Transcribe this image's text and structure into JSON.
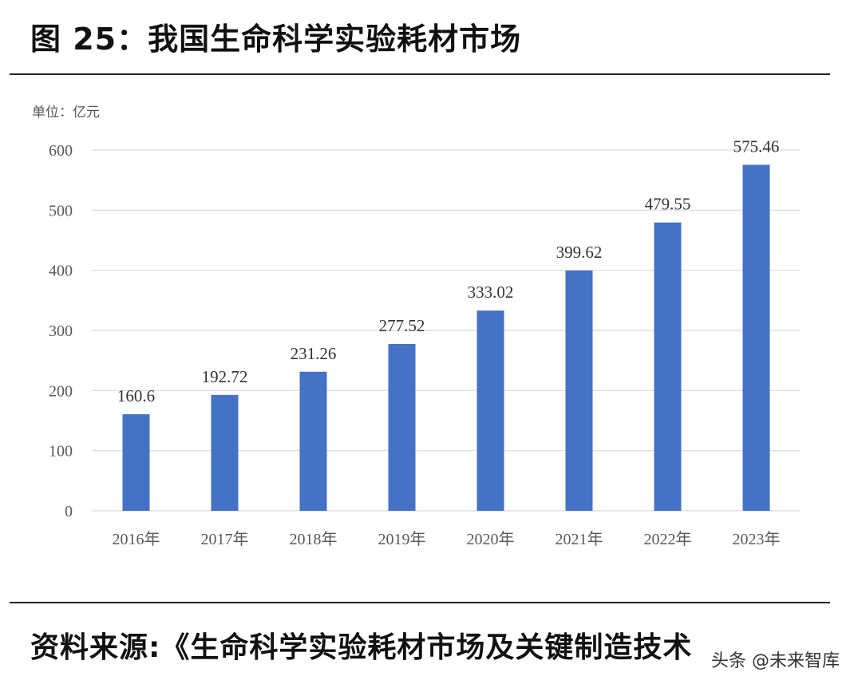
{
  "figure": {
    "title": "图 25：我国生命科学实验耗材市场",
    "unit_label": "单位：亿元",
    "source_text": "资料来源:《生命科学实验耗材市场及关键制造技术",
    "watermark": "头条 @未来智库"
  },
  "colors": {
    "bar": "#4472c4",
    "grid": "#d9d9d9",
    "axis_text": "#595959"
  },
  "chart_data": {
    "type": "bar",
    "title": "我国生命科学实验耗材市场",
    "xlabel": "",
    "ylabel": "单位：亿元",
    "categories": [
      "2016年",
      "2017年",
      "2018年",
      "2019年",
      "2020年",
      "2021年",
      "2022年",
      "2023年"
    ],
    "values": [
      160.6,
      192.72,
      231.26,
      277.52,
      333.02,
      399.62,
      479.55,
      575.46
    ],
    "data_labels": [
      "160.6",
      "192.72",
      "231.26",
      "277.52",
      "333.02",
      "399.62",
      "479.55",
      "575.46"
    ],
    "ylim": [
      0,
      600
    ],
    "yticks": [
      0,
      100,
      200,
      300,
      400,
      500,
      600
    ],
    "grid": true,
    "legend": "none"
  }
}
